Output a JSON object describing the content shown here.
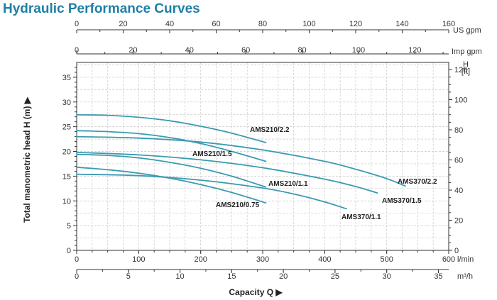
{
  "title": "Hydraulic Performance Curves",
  "chart_data": {
    "type": "line",
    "title": "Hydraulic Performance Curves",
    "xlabel": "Capacity Q",
    "ylabel": "Total manometric head H (m)",
    "grid": true,
    "legend": "inline labels",
    "x_axes": {
      "primary": {
        "unit": "l/min",
        "range": [
          0,
          600
        ],
        "ticks": [
          "0",
          "100",
          "200",
          "300",
          "400",
          "500",
          "600"
        ]
      },
      "m3h": {
        "unit": "m³/h",
        "range": [
          0,
          36
        ],
        "ticks": [
          "0",
          "5",
          "10",
          "15",
          "20",
          "25",
          "30",
          "35"
        ]
      },
      "us_gpm": {
        "unit": "US gpm",
        "range": [
          0,
          160
        ],
        "ticks": [
          "0",
          "20",
          "40",
          "60",
          "80",
          "100",
          "120",
          "140",
          "160"
        ]
      },
      "imp_gpm": {
        "unit": "Imp gpm",
        "range": [
          0,
          132
        ],
        "ticks": [
          "0",
          "20",
          "40",
          "60",
          "80",
          "100",
          "120"
        ]
      }
    },
    "y_axes": {
      "left": {
        "unit": "m",
        "range": [
          0,
          38
        ],
        "ticks": [
          "0",
          "5",
          "10",
          "15",
          "20",
          "25",
          "30",
          "35"
        ]
      },
      "right": {
        "unit_line1": "H",
        "unit_line2": "[ft]",
        "range": [
          0,
          124.7
        ],
        "ticks": [
          "0",
          "20",
          "40",
          "60",
          "80",
          "100",
          "120"
        ]
      }
    },
    "series": [
      {
        "name": "AMS210/2.2",
        "x": [
          0,
          50,
          100,
          150,
          200,
          250,
          305
        ],
        "y": [
          27.4,
          27.3,
          26.9,
          26.2,
          25.1,
          23.7,
          21.8
        ]
      },
      {
        "name": "AMS210/1.5",
        "x": [
          0,
          50,
          100,
          150,
          200,
          250,
          305
        ],
        "y": [
          24.2,
          24.0,
          23.6,
          22.8,
          21.6,
          20.0,
          18.0
        ]
      },
      {
        "name": "AMS210/1.1",
        "x": [
          0,
          50,
          100,
          150,
          200,
          250,
          305
        ],
        "y": [
          19.4,
          19.2,
          18.7,
          17.8,
          16.6,
          15.0,
          12.8
        ]
      },
      {
        "name": "AMS210/0.75",
        "x": [
          0,
          50,
          100,
          150,
          200,
          250,
          305
        ],
        "y": [
          16.8,
          16.3,
          15.6,
          14.6,
          13.3,
          11.7,
          9.6
        ]
      },
      {
        "name": "AMS370/2.2",
        "x": [
          0,
          100,
          200,
          300,
          400,
          450,
          500,
          530
        ],
        "y": [
          23.0,
          22.7,
          21.9,
          20.3,
          18.0,
          16.4,
          14.5,
          13.0
        ]
      },
      {
        "name": "AMS370/1.5",
        "x": [
          0,
          100,
          200,
          300,
          400,
          450,
          485
        ],
        "y": [
          19.8,
          19.3,
          18.3,
          16.7,
          14.4,
          12.9,
          11.6
        ]
      },
      {
        "name": "AMS370/1.1",
        "x": [
          0,
          100,
          200,
          300,
          350,
          400,
          435
        ],
        "y": [
          15.4,
          15.1,
          14.2,
          12.6,
          11.4,
          9.8,
          8.4
        ]
      }
    ],
    "annotations": [
      {
        "text": "AMS210/2.2",
        "series": "AMS210/2.2"
      },
      {
        "text": "AMS210/1.5",
        "series": "AMS210/1.5"
      },
      {
        "text": "AMS210/1.1",
        "series": "AMS210/1.1"
      },
      {
        "text": "AMS210/0.75",
        "series": "AMS210/0.75"
      },
      {
        "text": "AMS370/2.2",
        "series": "AMS370/2.2"
      },
      {
        "text": "AMS370/1.5",
        "series": "AMS370/1.5"
      },
      {
        "text": "AMS370/1.1",
        "series": "AMS370/1.1"
      }
    ],
    "colors": {
      "curve": "#3b9bb0",
      "title": "#1f7fa6",
      "grid": "#c8c8c8",
      "axis": "#333333"
    }
  }
}
